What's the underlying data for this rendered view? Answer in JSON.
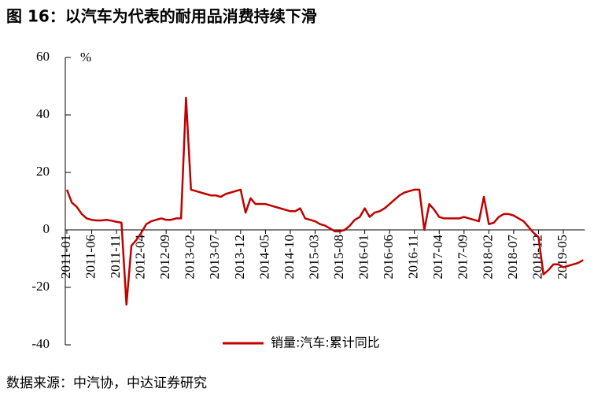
{
  "chart_data": {
    "type": "line",
    "title": "图 16：以汽车为代表的耐用品消费持续下滑",
    "y_unit": "%",
    "source": "数据来源：中汽协，中达证券研究",
    "categories": [
      "2011-01",
      null,
      null,
      null,
      null,
      "2011-06",
      null,
      null,
      null,
      null,
      "2011-11",
      null,
      null,
      null,
      null,
      "2012-04",
      null,
      null,
      null,
      null,
      "2012-09",
      null,
      null,
      null,
      null,
      "2013-02",
      null,
      null,
      null,
      null,
      "2013-07",
      null,
      null,
      null,
      null,
      "2013-12",
      null,
      null,
      null,
      null,
      "2014-05",
      null,
      null,
      null,
      null,
      "2014-10",
      null,
      null,
      null,
      null,
      "2015-03",
      null,
      null,
      null,
      null,
      "2015-08",
      null,
      null,
      null,
      null,
      "2016-01",
      null,
      null,
      null,
      null,
      "2016-06",
      null,
      null,
      null,
      null,
      "2016-11",
      null,
      null,
      null,
      null,
      "2017-04",
      null,
      null,
      null,
      null,
      "2017-09",
      null,
      null,
      null,
      null,
      "2018-02",
      null,
      null,
      null,
      null,
      "2018-07",
      null,
      null,
      null,
      null,
      "2018-12",
      null,
      null,
      null,
      null,
      "2019-05",
      null,
      null,
      null,
      null
    ],
    "series": [
      {
        "name": "销量:汽车:累计同比",
        "color": "#c00000",
        "values": [
          14,
          9.5,
          8,
          5.5,
          4,
          3.5,
          3.3,
          3.3,
          3.5,
          3.2,
          2.8,
          2.5,
          -26,
          -5.5,
          -3.5,
          -1,
          2,
          3,
          3.5,
          4,
          3.5,
          3.5,
          4,
          4,
          46,
          14,
          13.5,
          13,
          12.5,
          12,
          12,
          11.5,
          12.5,
          13,
          13.5,
          14,
          6,
          11,
          9,
          9,
          9,
          8.5,
          8,
          7.5,
          7,
          6.5,
          6.5,
          7.5,
          4,
          3.5,
          3,
          2,
          1.5,
          0.5,
          -0.5,
          -0.5,
          0,
          1.5,
          3.5,
          4.5,
          7.5,
          4.5,
          6,
          6.5,
          7.5,
          9,
          10.5,
          12,
          13,
          13.5,
          14,
          14,
          0,
          9,
          7,
          4.5,
          4,
          4,
          4,
          4,
          4.5,
          4,
          3.5,
          3,
          11.5,
          2,
          2.5,
          4.5,
          5.5,
          5.5,
          5,
          4,
          3,
          1,
          -1,
          -2.5,
          -15.5,
          -14,
          -12,
          -12,
          -13,
          -12.5,
          -12,
          -11.5,
          -10.5
        ]
      }
    ],
    "ylim": [
      -40,
      60
    ],
    "yticks": [
      -40,
      -20,
      0,
      20,
      40,
      60
    ],
    "grid": false
  }
}
